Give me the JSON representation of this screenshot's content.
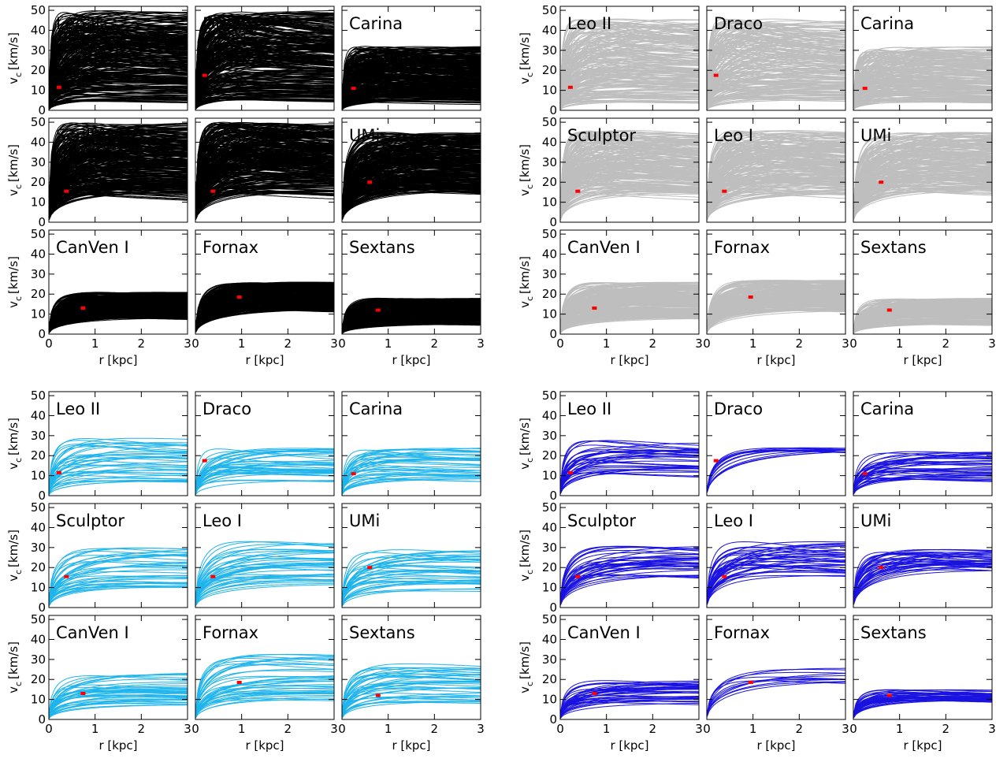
{
  "figure": {
    "panel_names": [
      "Leo II",
      "Draco",
      "Carina",
      "Sculptor",
      "Leo I",
      "UMi",
      "CanVen I",
      "Fornax",
      "Sextans"
    ],
    "ylabel_main": "v",
    "ylabel_sub": "c",
    "ylabel_unit": "[km/s]",
    "xlabel": "r [kpc]",
    "xticks": [
      "0",
      "1",
      "2",
      "3"
    ],
    "yticks": [
      "0",
      "10",
      "20",
      "30",
      "40",
      "50"
    ],
    "xlim": [
      0,
      3
    ],
    "ylim": [
      0,
      52
    ]
  },
  "chart_data": [
    {
      "type": "line",
      "colors": {
        "curves": "#000000",
        "marker": "#ff0000"
      },
      "panels": [
        {
          "name": "Leo II",
          "n_curves": 300,
          "vmax_range": [
            4,
            50
          ],
          "peak_r": [
            0.3,
            6
          ],
          "marker": {
            "r": 0.22,
            "v": 11.5
          }
        },
        {
          "name": "Draco",
          "n_curves": 300,
          "vmax_range": [
            5,
            50
          ],
          "peak_r": [
            0.3,
            6
          ],
          "marker": {
            "r": 0.2,
            "v": 17.5
          }
        },
        {
          "name": "Carina",
          "n_curves": 300,
          "vmax_range": [
            4,
            32
          ],
          "peak_r": [
            0.3,
            6
          ],
          "marker": {
            "r": 0.25,
            "v": 11
          }
        },
        {
          "name": "Sculptor",
          "n_curves": 300,
          "vmax_range": [
            14,
            50
          ],
          "peak_r": [
            0.4,
            6
          ],
          "marker": {
            "r": 0.38,
            "v": 15.5
          }
        },
        {
          "name": "Leo I",
          "n_curves": 300,
          "vmax_range": [
            14,
            50
          ],
          "peak_r": [
            0.4,
            6
          ],
          "marker": {
            "r": 0.38,
            "v": 15.5
          }
        },
        {
          "name": "UMi",
          "n_curves": 300,
          "vmax_range": [
            15,
            45
          ],
          "peak_r": [
            0.6,
            6
          ],
          "marker": {
            "r": 0.6,
            "v": 20
          }
        },
        {
          "name": "CanVen I",
          "n_curves": 300,
          "vmax_range": [
            8,
            21
          ],
          "peak_r": [
            0.7,
            6
          ],
          "marker": {
            "r": 0.74,
            "v": 13
          }
        },
        {
          "name": "Fornax",
          "n_curves": 300,
          "vmax_range": [
            12,
            26
          ],
          "peak_r": [
            0.9,
            6
          ],
          "marker": {
            "r": 0.95,
            "v": 18.5
          }
        },
        {
          "name": "Sextans",
          "n_curves": 300,
          "vmax_range": [
            5,
            18
          ],
          "peak_r": [
            0.7,
            6
          ],
          "marker": {
            "r": 0.78,
            "v": 12
          }
        }
      ]
    },
    {
      "type": "line",
      "colors": {
        "curves": "#bebebe",
        "marker": "#ff0000"
      },
      "panels": [
        {
          "name": "Leo II",
          "n_curves": 220,
          "vmax_range": [
            4,
            46
          ],
          "peak_r": [
            0.3,
            6
          ],
          "marker": {
            "r": 0.22,
            "v": 11.5
          }
        },
        {
          "name": "Draco",
          "n_curves": 220,
          "vmax_range": [
            5,
            46
          ],
          "peak_r": [
            0.3,
            6
          ],
          "marker": {
            "r": 0.2,
            "v": 17.5
          }
        },
        {
          "name": "Carina",
          "n_curves": 220,
          "vmax_range": [
            4,
            32
          ],
          "peak_r": [
            0.3,
            6
          ],
          "marker": {
            "r": 0.25,
            "v": 11
          }
        },
        {
          "name": "Sculptor",
          "n_curves": 220,
          "vmax_range": [
            14,
            46
          ],
          "peak_r": [
            0.4,
            6
          ],
          "marker": {
            "r": 0.38,
            "v": 15.5
          }
        },
        {
          "name": "Leo I",
          "n_curves": 220,
          "vmax_range": [
            14,
            46
          ],
          "peak_r": [
            0.4,
            6
          ],
          "marker": {
            "r": 0.38,
            "v": 15.5
          }
        },
        {
          "name": "UMi",
          "n_curves": 220,
          "vmax_range": [
            15,
            45
          ],
          "peak_r": [
            0.6,
            6
          ],
          "marker": {
            "r": 0.6,
            "v": 20
          }
        },
        {
          "name": "CanVen I",
          "n_curves": 220,
          "vmax_range": [
            8,
            26
          ],
          "peak_r": [
            0.7,
            6
          ],
          "marker": {
            "r": 0.74,
            "v": 13
          }
        },
        {
          "name": "Fornax",
          "n_curves": 220,
          "vmax_range": [
            12,
            27
          ],
          "peak_r": [
            0.9,
            6
          ],
          "marker": {
            "r": 0.95,
            "v": 18.5
          }
        },
        {
          "name": "Sextans",
          "n_curves": 220,
          "vmax_range": [
            5,
            18
          ],
          "peak_r": [
            0.7,
            6
          ],
          "marker": {
            "r": 0.78,
            "v": 12
          }
        }
      ]
    },
    {
      "type": "line",
      "colors": {
        "curves": "#1eb4ec",
        "marker": "#ff0000"
      },
      "panels": [
        {
          "name": "Leo II",
          "n_curves": 40,
          "vmax_range": [
            7,
            29
          ],
          "peak_r": [
            0.5,
            6
          ],
          "marker": {
            "r": 0.22,
            "v": 11.5
          }
        },
        {
          "name": "Draco",
          "n_curves": 40,
          "vmax_range": [
            7,
            24
          ],
          "peak_r": [
            0.5,
            6
          ],
          "marker": {
            "r": 0.2,
            "v": 17.5
          }
        },
        {
          "name": "Carina",
          "n_curves": 40,
          "vmax_range": [
            7,
            24
          ],
          "peak_r": [
            0.5,
            6
          ],
          "marker": {
            "r": 0.25,
            "v": 11
          }
        },
        {
          "name": "Sculptor",
          "n_curves": 40,
          "vmax_range": [
            10,
            31
          ],
          "peak_r": [
            0.8,
            6
          ],
          "marker": {
            "r": 0.38,
            "v": 15.5
          }
        },
        {
          "name": "Leo I",
          "n_curves": 40,
          "vmax_range": [
            10,
            33
          ],
          "peak_r": [
            0.8,
            6
          ],
          "marker": {
            "r": 0.38,
            "v": 15.5
          }
        },
        {
          "name": "UMi",
          "n_curves": 40,
          "vmax_range": [
            8,
            29
          ],
          "peak_r": [
            0.6,
            6
          ],
          "marker": {
            "r": 0.6,
            "v": 20
          }
        },
        {
          "name": "CanVen I",
          "n_curves": 40,
          "vmax_range": [
            7,
            24
          ],
          "peak_r": [
            0.7,
            6
          ],
          "marker": {
            "r": 0.74,
            "v": 13
          }
        },
        {
          "name": "Fornax",
          "n_curves": 40,
          "vmax_range": [
            9,
            33
          ],
          "peak_r": [
            1.0,
            6
          ],
          "marker": {
            "r": 0.95,
            "v": 18.5
          }
        },
        {
          "name": "Sextans",
          "n_curves": 40,
          "vmax_range": [
            6,
            28
          ],
          "peak_r": [
            0.8,
            6
          ],
          "marker": {
            "r": 0.78,
            "v": 12
          }
        }
      ]
    },
    {
      "type": "line",
      "colors": {
        "curves": "#1a12e0",
        "marker": "#ff0000"
      },
      "panels": [
        {
          "name": "Leo II",
          "n_curves": 40,
          "vmax_range": [
            10,
            28
          ],
          "peak_r": [
            0.5,
            6
          ],
          "marker": {
            "r": 0.22,
            "v": 11.5
          }
        },
        {
          "name": "Draco",
          "n_curves": 12,
          "vmax_range": [
            22,
            24
          ],
          "peak_r": [
            1.5,
            6
          ],
          "marker": {
            "r": 0.2,
            "v": 17.5
          }
        },
        {
          "name": "Carina",
          "n_curves": 40,
          "vmax_range": [
            8,
            24
          ],
          "peak_r": [
            0.5,
            6
          ],
          "marker": {
            "r": 0.25,
            "v": 11
          }
        },
        {
          "name": "Sculptor",
          "n_curves": 40,
          "vmax_range": [
            16,
            31
          ],
          "peak_r": [
            0.8,
            6
          ],
          "marker": {
            "r": 0.38,
            "v": 15.5
          }
        },
        {
          "name": "Leo I",
          "n_curves": 40,
          "vmax_range": [
            15,
            33
          ],
          "peak_r": [
            0.8,
            6
          ],
          "marker": {
            "r": 0.38,
            "v": 15.5
          }
        },
        {
          "name": "UMi",
          "n_curves": 40,
          "vmax_range": [
            18,
            29
          ],
          "peak_r": [
            0.6,
            6
          ],
          "marker": {
            "r": 0.6,
            "v": 20
          }
        },
        {
          "name": "CanVen I",
          "n_curves": 40,
          "vmax_range": [
            8,
            20
          ],
          "peak_r": [
            0.7,
            6
          ],
          "marker": {
            "r": 0.74,
            "v": 13
          }
        },
        {
          "name": "Fornax",
          "n_curves": 12,
          "vmax_range": [
            18,
            26
          ],
          "peak_r": [
            1.0,
            6
          ],
          "marker": {
            "r": 0.95,
            "v": 18.5
          }
        },
        {
          "name": "Sextans",
          "n_curves": 40,
          "vmax_range": [
            9,
            15
          ],
          "peak_r": [
            0.8,
            6
          ],
          "marker": {
            "r": 0.78,
            "v": 12
          }
        }
      ]
    }
  ]
}
